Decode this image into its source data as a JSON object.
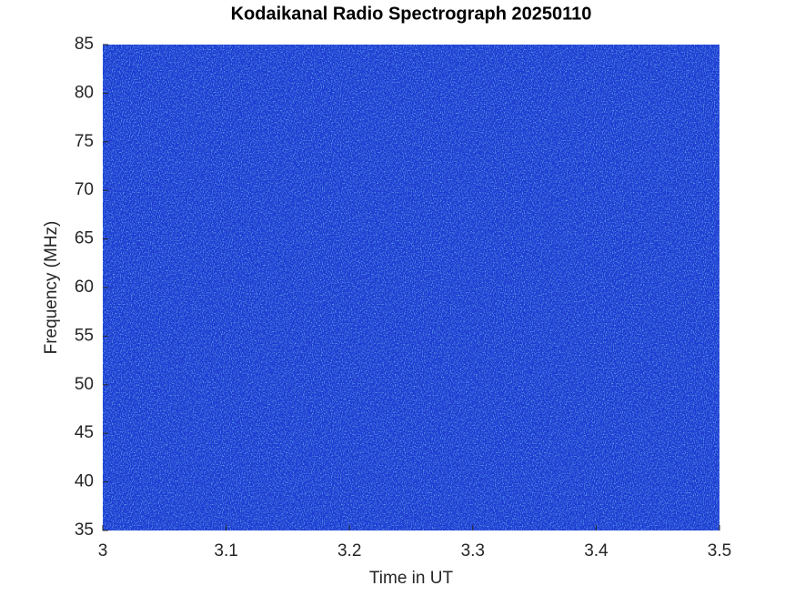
{
  "chart_data": {
    "type": "spectrogram",
    "title": "Kodaikanal Radio Spectrograph  20250110",
    "x_label": "Time in UT",
    "y_label": "Frequency (MHz)",
    "xlim": [
      3,
      3.5
    ],
    "xticks": [
      3,
      3.1,
      3.2,
      3.3,
      3.4,
      3.5
    ],
    "ylim": [
      35,
      85
    ],
    "yticks": [
      35,
      40,
      45,
      50,
      55,
      60,
      65,
      70,
      75,
      80,
      85
    ]
  }
}
